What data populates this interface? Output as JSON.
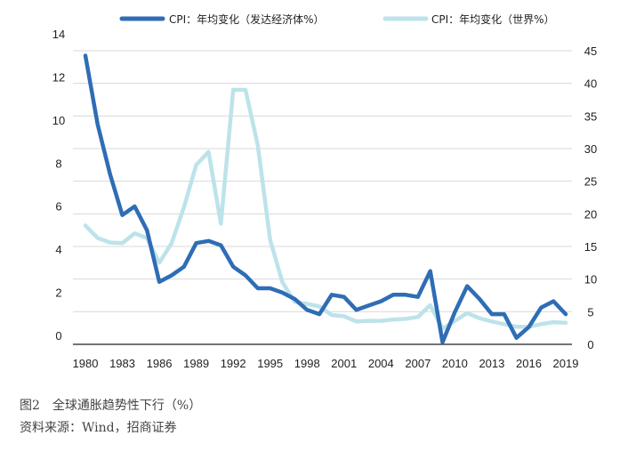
{
  "chart_data": {
    "type": "line",
    "legend": "top",
    "grid": true,
    "x": [
      1980,
      1981,
      1982,
      1983,
      1984,
      1985,
      1986,
      1987,
      1988,
      1989,
      1990,
      1991,
      1992,
      1993,
      1994,
      1995,
      1996,
      1997,
      1998,
      1999,
      2000,
      2001,
      2002,
      2003,
      2004,
      2005,
      2006,
      2007,
      2008,
      2009,
      2010,
      2011,
      2012,
      2013,
      2014,
      2015,
      2016,
      2017,
      2018,
      2019
    ],
    "x_ticks": [
      "1980",
      "1983",
      "1986",
      "1989",
      "1992",
      "1995",
      "1998",
      "2001",
      "2004",
      "2007",
      "2010",
      "2013",
      "2016",
      "2019"
    ],
    "y_left_ticks": [
      "0",
      "2",
      "4",
      "6",
      "8",
      "10",
      "12",
      "14"
    ],
    "y_right_ticks": [
      "0",
      "5",
      "10",
      "15",
      "20",
      "25",
      "30",
      "35",
      "40",
      "45"
    ],
    "ylim_left": [
      0,
      14
    ],
    "ylim_right": [
      0,
      45
    ],
    "series": [
      {
        "name": "CPI：年均变化（发达经济体%）",
        "axis": "left",
        "color": "#2f6db5",
        "values": [
          13.4,
          10.2,
          7.9,
          6.0,
          6.4,
          5.3,
          2.9,
          3.2,
          3.6,
          4.7,
          4.8,
          4.6,
          3.6,
          3.2,
          2.6,
          2.6,
          2.4,
          2.1,
          1.6,
          1.4,
          2.3,
          2.2,
          1.6,
          1.8,
          2.0,
          2.3,
          2.3,
          2.2,
          3.4,
          0.1,
          1.5,
          2.7,
          2.1,
          1.4,
          1.4,
          0.3,
          0.8,
          1.7,
          2.0,
          1.4
        ]
      },
      {
        "name": "CPI：年均变化（世界%）",
        "axis": "right",
        "color": "#bde3ea",
        "values": [
          18.2,
          16.3,
          15.6,
          15.5,
          17.0,
          16.3,
          12.5,
          15.5,
          21.0,
          27.5,
          29.5,
          18.5,
          39.0,
          39.0,
          30.5,
          16.0,
          9.5,
          6.5,
          6.2,
          5.8,
          4.5,
          4.3,
          3.5,
          3.6,
          3.6,
          3.8,
          3.9,
          4.2,
          6.0,
          2.4,
          3.6,
          4.8,
          4.0,
          3.5,
          3.1,
          2.7,
          2.7,
          3.1,
          3.4,
          3.3
        ]
      }
    ]
  },
  "caption": {
    "title": "图2　全球通胀趋势性下行（%）",
    "source": "资料来源：Wind，招商证券"
  }
}
